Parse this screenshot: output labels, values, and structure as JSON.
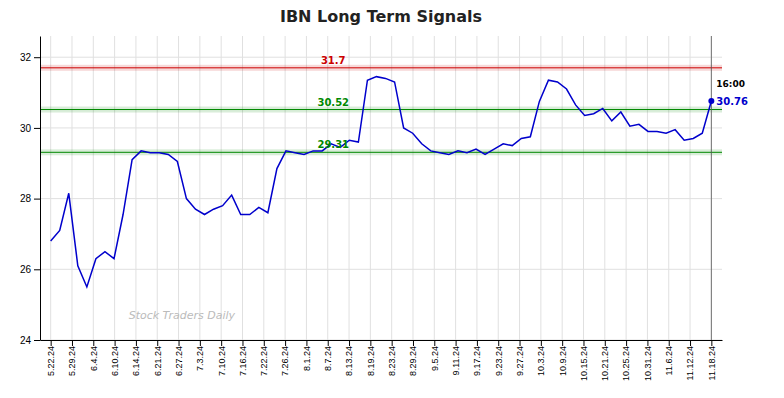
{
  "chart_data": {
    "type": "line",
    "title": "IBN Long Term Signals",
    "x": [
      0,
      0.4247,
      0.8493,
      1.274,
      1.6986,
      2.1233,
      2.5479,
      2.9726,
      3.3973,
      3.8219,
      4.2466,
      4.6712,
      5.0959,
      5.5205,
      5.9452,
      6.3699,
      6.7945,
      7.2192,
      7.6438,
      8.0685,
      8.4932,
      8.9178,
      9.3425,
      9.7671,
      10.1918,
      10.6164,
      11.0411,
      11.4658,
      11.8904,
      12.3151,
      12.7397,
      13.1644,
      13.589,
      14.0137,
      14.4384,
      14.863,
      15.2877,
      15.7123,
      16.137,
      16.5616,
      16.9863,
      17.411,
      17.8356,
      18.2603,
      18.6849,
      19.1096,
      19.5342,
      19.9589,
      20.3836,
      20.8082,
      21.2329,
      21.6575,
      22.0822,
      22.5068,
      22.9315,
      23.3562,
      23.7808,
      24.2055,
      24.6301,
      25.0548,
      25.4795,
      25.9041,
      26.3288,
      26.7534,
      27.1781,
      27.6027,
      28.0274,
      28.4521,
      28.8767,
      29.3014,
      29.726,
      30.1507,
      30.5753,
      31
    ],
    "series": [
      {
        "color": "#0000cc",
        "values": [
          26.8,
          27.1,
          28.15,
          26.1,
          25.5,
          26.3,
          26.5,
          26.3,
          27.55,
          29.1,
          29.35,
          29.3,
          29.3,
          29.25,
          29.05,
          28.0,
          27.7,
          27.55,
          27.7,
          27.8,
          28.1,
          27.55,
          27.55,
          27.75,
          27.6,
          28.85,
          29.35,
          29.3,
          29.25,
          29.35,
          29.35,
          29.55,
          29.45,
          29.65,
          29.6,
          31.35,
          31.45,
          31.4,
          31.3,
          30.0,
          29.85,
          29.55,
          29.35,
          29.3,
          29.25,
          29.35,
          29.3,
          29.4,
          29.25,
          29.4,
          29.55,
          29.5,
          29.7,
          29.75,
          30.75,
          31.35,
          31.3,
          31.1,
          30.65,
          30.35,
          30.4,
          30.55,
          30.2,
          30.45,
          30.05,
          30.1,
          29.9,
          29.9,
          29.85,
          29.95,
          29.65,
          29.7,
          29.85,
          30.76
        ]
      }
    ],
    "xlim": [
      -0.5,
      31.5
    ],
    "xticks": [
      {
        "value": 0,
        "label": "5.22.24"
      },
      {
        "value": 1,
        "label": "5.29.24"
      },
      {
        "value": 2,
        "label": "6.4.24"
      },
      {
        "value": 3,
        "label": "6.10.24"
      },
      {
        "value": 4,
        "label": "6.14.24"
      },
      {
        "value": 5,
        "label": "6.21.24"
      },
      {
        "value": 6,
        "label": "6.27.24"
      },
      {
        "value": 7,
        "label": "7.3.24"
      },
      {
        "value": 8,
        "label": "7.10.24"
      },
      {
        "value": 9,
        "label": "7.16.24"
      },
      {
        "value": 10,
        "label": "7.22.24"
      },
      {
        "value": 11,
        "label": "7.26.24"
      },
      {
        "value": 12,
        "label": "8.1.24"
      },
      {
        "value": 13,
        "label": "8.7.24"
      },
      {
        "value": 14,
        "label": "8.13.24"
      },
      {
        "value": 15,
        "label": "8.19.24"
      },
      {
        "value": 16,
        "label": "8.23.24"
      },
      {
        "value": 17,
        "label": "8.29.24"
      },
      {
        "value": 18,
        "label": "9.5.24"
      },
      {
        "value": 19,
        "label": "9.11.24"
      },
      {
        "value": 20,
        "label": "9.17.24"
      },
      {
        "value": 21,
        "label": "9.23.24"
      },
      {
        "value": 22,
        "label": "9.27.24"
      },
      {
        "value": 23,
        "label": "10.3.24"
      },
      {
        "value": 24,
        "label": "10.9.24"
      },
      {
        "value": 25,
        "label": "10.15.24"
      },
      {
        "value": 26,
        "label": "10.21.24"
      },
      {
        "value": 27,
        "label": "10.25.24"
      },
      {
        "value": 28,
        "label": "10.31.24"
      },
      {
        "value": 29,
        "label": "11.6.24"
      },
      {
        "value": 30,
        "label": "11.12.24"
      },
      {
        "value": 31,
        "label": "11.18.24"
      }
    ],
    "ylim": [
      24,
      32.6
    ],
    "yticks": [
      24,
      26,
      28,
      30,
      32
    ],
    "grid": true,
    "hlines": [
      {
        "y": 31.7,
        "label": "31.7",
        "color": "#cc0000"
      },
      {
        "y": 30.52,
        "label": "30.52",
        "color": "#008800"
      },
      {
        "y": 29.31,
        "label": "29.31",
        "color": "#008800"
      }
    ],
    "last_point": {
      "x": 31,
      "y": 30.76,
      "label": "30.76",
      "time": "16:00",
      "color": "#0000cc"
    },
    "watermark": {
      "text": "Stock Traders Daily",
      "color": "#bbbbbb"
    }
  }
}
